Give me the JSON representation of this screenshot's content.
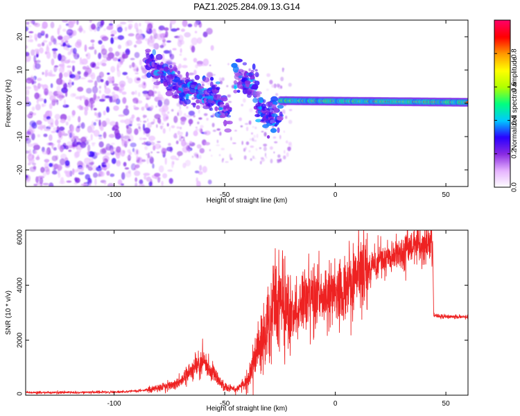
{
  "chart_data": [
    {
      "type": "heatmap",
      "title": "PAZ1.2025.284.09.13.G14",
      "xlabel": "Height of straight line (km)",
      "ylabel": "Frequency (Hz)",
      "xlim": [
        -140,
        60
      ],
      "ylim": [
        -25,
        25
      ],
      "xticks": [
        -100,
        -50,
        0,
        50
      ],
      "yticks": [
        -20,
        -10,
        0,
        10,
        20
      ],
      "colorbar": {
        "label": "Normalized spectral amplitude",
        "range": [
          0,
          1
        ],
        "ticks": [
          0.0,
          0.2,
          0.4,
          0.6,
          0.8
        ],
        "tick_labels": [
          "0.0",
          "0.2",
          "0.4",
          "0.6",
          "0.8"
        ],
        "colormap": [
          "#ffffff",
          "#e6b3ff",
          "#8a2be2",
          "#2a00ff",
          "#00c8ff",
          "#00ff80",
          "#b0ff00",
          "#ffff00",
          "#ff9900",
          "#ff0000",
          "#ff0066"
        ]
      },
      "ridge_segments": [
        {
          "x": [
            -85,
            -70
          ],
          "f": [
            12,
            5
          ]
        },
        {
          "x": [
            -70,
            -55
          ],
          "f": [
            5,
            2
          ]
        },
        {
          "x": [
            -55,
            -48
          ],
          "f": [
            2,
            -4
          ]
        },
        {
          "x": [
            -45,
            -35
          ],
          "f": [
            8,
            4
          ]
        },
        {
          "x": [
            -35,
            -25
          ],
          "f": [
            -2,
            -4
          ]
        },
        {
          "x": [
            -25,
            60
          ],
          "f": [
            0.8,
            0.3
          ]
        }
      ]
    },
    {
      "type": "line",
      "xlabel": "Height of straight line (km)",
      "ylabel": "SNR (10 * v/v)",
      "xlim": [
        -140,
        60
      ],
      "ylim": [
        0,
        6000
      ],
      "xticks": [
        -100,
        -50,
        0,
        50
      ],
      "yticks": [
        0,
        2000,
        4000,
        6000
      ],
      "color": "#ee2222",
      "series": [
        {
          "name": "SNR",
          "x": [
            -140,
            -120,
            -100,
            -90,
            -80,
            -70,
            -65,
            -60,
            -57,
            -52,
            -50,
            -45,
            -40,
            -35,
            -30,
            -27,
            -25,
            -22,
            -20,
            -15,
            -10,
            -5,
            0,
            5,
            10,
            15,
            20,
            25,
            30,
            35,
            40,
            44,
            44.5,
            50,
            55,
            60
          ],
          "y": [
            100,
            100,
            120,
            150,
            250,
            500,
            900,
            1300,
            1000,
            500,
            300,
            200,
            500,
            1500,
            2500,
            3200,
            3500,
            3000,
            2800,
            3300,
            3700,
            3600,
            3800,
            3900,
            4300,
            4600,
            4900,
            5000,
            5200,
            5400,
            5500,
            5600,
            2900,
            2850,
            2850,
            2850
          ]
        }
      ]
    }
  ]
}
